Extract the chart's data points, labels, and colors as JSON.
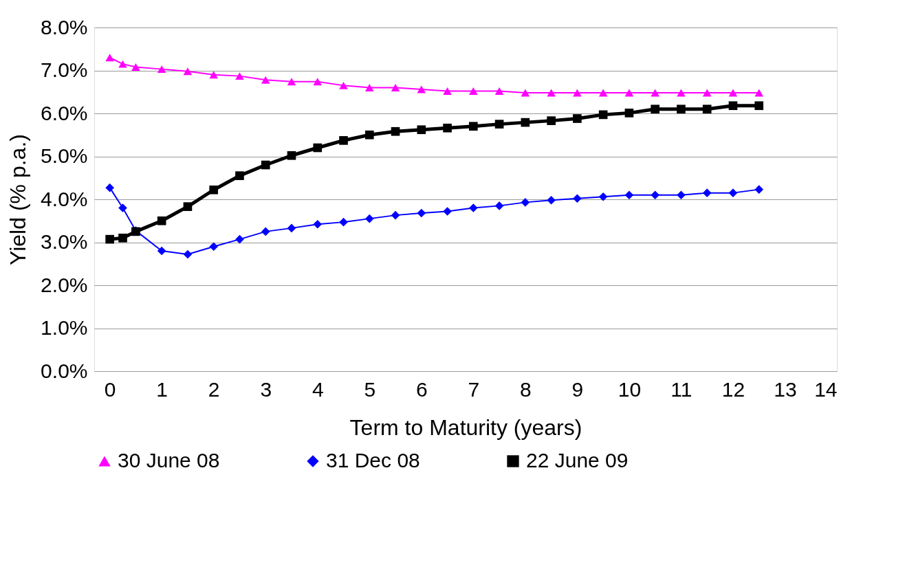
{
  "chart_data": {
    "type": "line",
    "xlabel": "Term to Maturity (years)",
    "ylabel": "Yield (% p.a.)",
    "x": [
      0,
      0.25,
      0.5,
      1,
      1.5,
      2,
      2.5,
      3,
      3.5,
      4,
      4.5,
      5,
      5.5,
      6,
      6.5,
      7,
      7.5,
      8,
      8.5,
      9,
      9.5,
      10,
      10.5,
      11,
      11.5,
      12,
      12.5
    ],
    "series": [
      {
        "name": "30 June 08",
        "color": "#ff00ff",
        "marker": "triangle",
        "values": [
          7.3,
          7.15,
          7.08,
          7.03,
          6.98,
          6.9,
          6.87,
          6.78,
          6.74,
          6.74,
          6.65,
          6.6,
          6.6,
          6.56,
          6.52,
          6.52,
          6.52,
          6.48,
          6.48,
          6.48,
          6.48,
          6.48,
          6.48,
          6.48,
          6.48,
          6.48,
          6.48
        ]
      },
      {
        "name": "31 Dec 08",
        "color": "#0000ff",
        "marker": "diamond",
        "values": [
          4.27,
          3.8,
          3.27,
          2.8,
          2.72,
          2.9,
          3.07,
          3.25,
          3.33,
          3.42,
          3.47,
          3.55,
          3.63,
          3.68,
          3.72,
          3.8,
          3.85,
          3.93,
          3.98,
          4.02,
          4.06,
          4.1,
          4.1,
          4.1,
          4.15,
          4.15,
          4.23
        ]
      },
      {
        "name": "22 June 09",
        "color": "#000000",
        "marker": "square",
        "values": [
          3.07,
          3.1,
          3.25,
          3.5,
          3.83,
          4.22,
          4.55,
          4.8,
          5.02,
          5.2,
          5.37,
          5.5,
          5.58,
          5.62,
          5.66,
          5.7,
          5.75,
          5.79,
          5.83,
          5.88,
          5.97,
          6.01,
          6.1,
          6.1,
          6.1,
          6.18,
          6.18
        ]
      }
    ],
    "xlim": [
      -0.3,
      14
    ],
    "xticks": [
      0,
      1,
      2,
      3,
      4,
      5,
      6,
      7,
      8,
      9,
      10,
      11,
      12,
      13,
      14
    ],
    "ylim": [
      0,
      8
    ],
    "yticks": [
      {
        "value": 0,
        "label": "0.0%"
      },
      {
        "value": 1,
        "label": "1.0%"
      },
      {
        "value": 2,
        "label": "2.0%"
      },
      {
        "value": 3,
        "label": "3.0%"
      },
      {
        "value": 4,
        "label": "4.0%"
      },
      {
        "value": 5,
        "label": "5.0%"
      },
      {
        "value": 6,
        "label": "6.0%"
      },
      {
        "value": 7,
        "label": "7.0%"
      },
      {
        "value": 8,
        "label": "8.0%"
      }
    ],
    "grid": "y",
    "legend": "bottom",
    "line_style": "solid"
  }
}
